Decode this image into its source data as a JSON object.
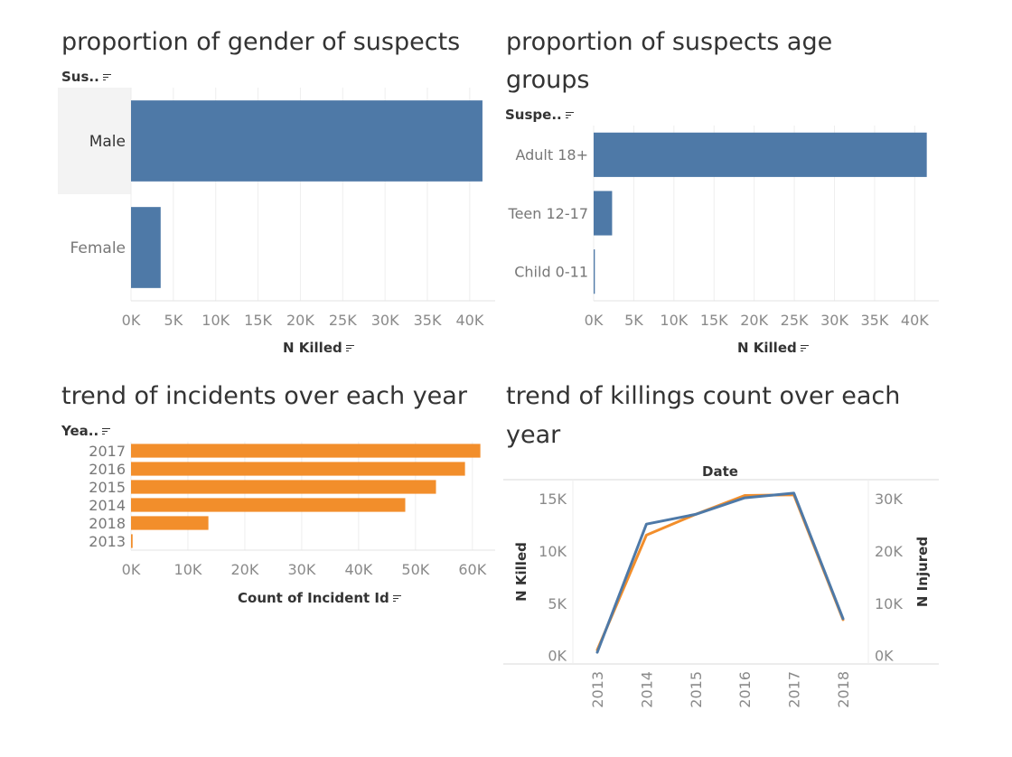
{
  "colors": {
    "blue": "#4e79a7",
    "orange": "#f28e2b",
    "text": "#333333",
    "tick": "#8a8a8a",
    "grid": "#eeeeee"
  },
  "panels": {
    "gender": {
      "title": "proportion of gender of suspects",
      "row_field": "Sus..",
      "x_axis_title": "N Killed"
    },
    "age": {
      "title_line1": "proportion of suspects age",
      "title_line2": "groups",
      "row_field": "Suspe..",
      "x_axis_title": "N Killed"
    },
    "incidents": {
      "title": "trend of incidents over each year",
      "row_field": "Yea..",
      "x_axis_title": "Count of Incident Id"
    },
    "killings": {
      "title_line1": "trend of killings count over each",
      "title_line2": "year",
      "top_title": "Date",
      "left_axis_title": "N Killed",
      "right_axis_title": "N Injured"
    }
  },
  "chart_data": [
    {
      "type": "bar",
      "orientation": "horizontal",
      "title": "proportion of gender of suspects",
      "categories": [
        "Male",
        "Female"
      ],
      "values": [
        41500,
        3500
      ],
      "xlabel": "N Killed",
      "ylabel": "Sus..",
      "xlim": [
        0,
        43000
      ],
      "ticks": [
        0,
        5000,
        10000,
        15000,
        20000,
        25000,
        30000,
        35000,
        40000
      ],
      "tick_labels": [
        "0K",
        "5K",
        "10K",
        "15K",
        "20K",
        "25K",
        "30K",
        "35K",
        "40K"
      ],
      "color": "#4e79a7",
      "highlighted": "Male"
    },
    {
      "type": "bar",
      "orientation": "horizontal",
      "title": "proportion of suspects age groups",
      "categories": [
        "Adult 18+",
        "Teen 12-17",
        "Child 0-11"
      ],
      "values": [
        41500,
        2300,
        150
      ],
      "xlabel": "N Killed",
      "ylabel": "Suspe..",
      "xlim": [
        0,
        43000
      ],
      "ticks": [
        0,
        5000,
        10000,
        15000,
        20000,
        25000,
        30000,
        35000,
        40000
      ],
      "tick_labels": [
        "0K",
        "5K",
        "10K",
        "15K",
        "20K",
        "25K",
        "30K",
        "35K",
        "40K"
      ],
      "color": "#4e79a7"
    },
    {
      "type": "bar",
      "orientation": "horizontal",
      "title": "trend of incidents over each year",
      "categories": [
        "2017",
        "2016",
        "2015",
        "2014",
        "2018",
        "2013"
      ],
      "values": [
        61400,
        58700,
        53600,
        48200,
        13600,
        280
      ],
      "xlabel": "Count of Incident Id",
      "ylabel": "Yea..",
      "xlim": [
        0,
        64000
      ],
      "ticks": [
        0,
        10000,
        20000,
        30000,
        40000,
        50000,
        60000
      ],
      "tick_labels": [
        "0K",
        "10K",
        "20K",
        "30K",
        "40K",
        "50K",
        "60K"
      ],
      "color": "#f28e2b"
    },
    {
      "type": "line",
      "title": "trend of killings count over each year",
      "top_title": "Date",
      "x": [
        "2013",
        "2014",
        "2015",
        "2016",
        "2017",
        "2018"
      ],
      "series": [
        {
          "name": "N Killed",
          "axis": "left",
          "color": "#4e79a7",
          "values": [
            317,
            12557,
            13484,
            15066,
            15511,
            3533
          ]
        },
        {
          "name": "N Injured",
          "axis": "right",
          "color": "#f28e2b",
          "values": [
            1077,
            23002,
            26967,
            30580,
            30703,
            6857
          ]
        }
      ],
      "left_ylim": [
        -800,
        16800
      ],
      "right_ylim": [
        -1600,
        33600
      ],
      "left_ticks": [
        0,
        5000,
        10000,
        15000
      ],
      "left_tick_labels": [
        "0K",
        "5K",
        "10K",
        "15K"
      ],
      "right_ticks": [
        0,
        10000,
        20000,
        30000
      ],
      "right_tick_labels": [
        "0K",
        "10K",
        "20K",
        "30K"
      ],
      "ylabel_left": "N Killed",
      "ylabel_right": "N Injured"
    }
  ]
}
